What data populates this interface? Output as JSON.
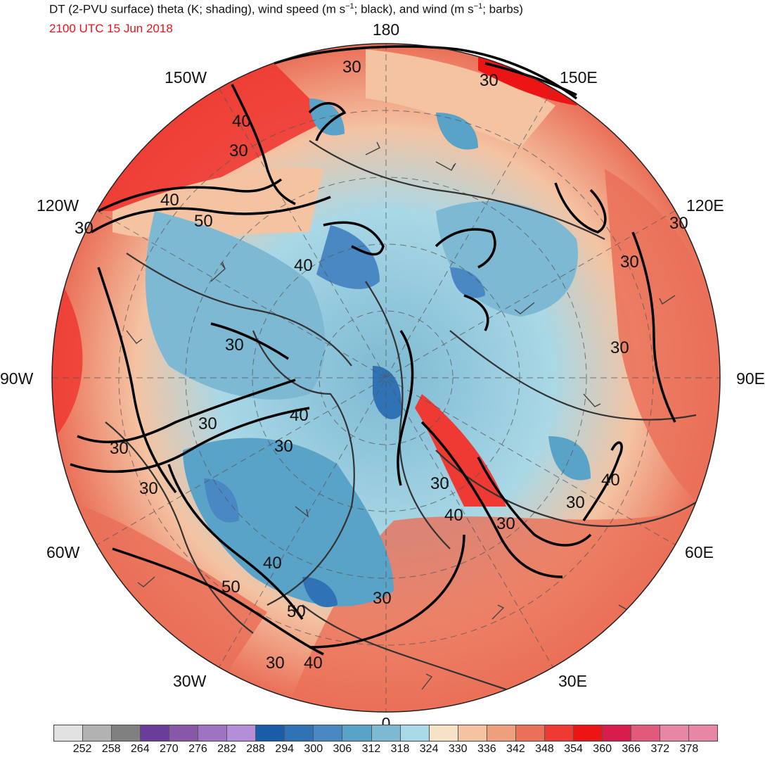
{
  "header": {
    "title_pre": "DT (2-PVU surface) theta (K; shading), wind speed (m s",
    "title_sup1": "−1",
    "title_mid": "; black), and wind (m s",
    "title_sup2": "−1",
    "title_post": "; barbs)",
    "valid_time": "2100 UTC 15 Jun 2018",
    "valid_time_color": "#e8141c"
  },
  "map": {
    "projection": "north polar stereographic",
    "longitude_labels": {
      "top": "180",
      "bottom": "0",
      "left": "90W",
      "right": "90E",
      "upper_left_150": "150W",
      "upper_right_150": "150E",
      "left_120": "120W",
      "right_120": "120E",
      "lower_left_60": "60W",
      "lower_right_60": "60E",
      "lower_left_30": "30W",
      "lower_right_30": "30E"
    },
    "contour_labels": [
      "30",
      "30",
      "40",
      "30",
      "40",
      "50",
      "30",
      "40",
      "30",
      "30",
      "30",
      "40",
      "30",
      "30",
      "30",
      "30",
      "30",
      "40",
      "30",
      "30",
      "40",
      "30",
      "40",
      "50",
      "50",
      "30",
      "40",
      "30"
    ]
  },
  "colorbar": {
    "labels": [
      "252",
      "258",
      "264",
      "270",
      "276",
      "282",
      "288",
      "294",
      "300",
      "306",
      "312",
      "318",
      "324",
      "330",
      "336",
      "342",
      "348",
      "354",
      "360",
      "366",
      "372",
      "378"
    ],
    "colors": [
      "#e2e2e2",
      "#b2b2b2",
      "#808080",
      "#6a3d9a",
      "#8757a8",
      "#9e74c2",
      "#b48ed8",
      "#1a5ca8",
      "#2f72b6",
      "#4a88c4",
      "#5aa3c8",
      "#7db9d3",
      "#a9d8e6",
      "#f6e2c6",
      "#f4c3a2",
      "#ef9f7e",
      "#ea7058",
      "#ee3a33",
      "#ec1515",
      "#d81c4b",
      "#e15a7b",
      "#e887a5"
    ]
  }
}
